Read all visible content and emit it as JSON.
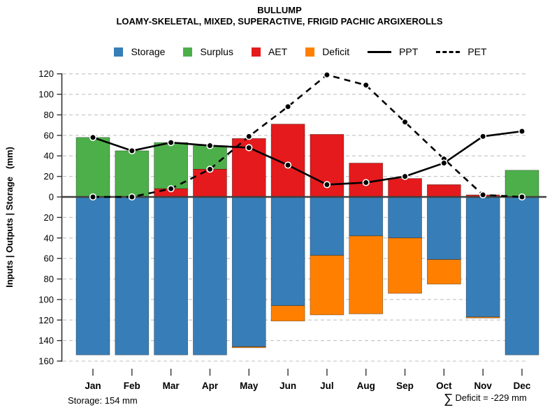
{
  "header": {
    "title": "BULLUMP",
    "subtitle": "LOAMY-SKELETAL, MIXED, SUPERACTIVE, FRIGID PACHIC ARGIXEROLLS"
  },
  "legend": {
    "items": [
      {
        "label": "Storage",
        "swatch": "square",
        "color": "#377EB8"
      },
      {
        "label": "Surplus",
        "swatch": "square",
        "color": "#4DAF4A"
      },
      {
        "label": "AET",
        "swatch": "square",
        "color": "#E41A1C"
      },
      {
        "label": "Deficit",
        "swatch": "square",
        "color": "#FF8000"
      },
      {
        "label": "PPT",
        "swatch": "solid-line",
        "color": "#000000"
      },
      {
        "label": "PET",
        "swatch": "dashed-line",
        "color": "#000000"
      }
    ]
  },
  "y_axis": {
    "label": "Inputs | Outputs | Storage   (mm)",
    "tick_labels": [
      "120",
      "100",
      "80",
      "60",
      "40",
      "20",
      "0",
      "20",
      "40",
      "60",
      "80",
      "100",
      "120",
      "140",
      "160"
    ]
  },
  "annotations": {
    "storage_note": "Storage: 154 mm",
    "sigma": "∑",
    "deficit_note": "Deficit = -229 mm"
  },
  "colors": {
    "storage": "#377EB8",
    "surplus": "#4DAF4A",
    "aet": "#E41A1C",
    "deficit": "#FF8000",
    "line": "#000000",
    "grid": "#C8C8C8",
    "axis": "#333333",
    "zero_line": "#404040",
    "marker_fill": "#000000",
    "marker_ring": "#FFFFFF"
  },
  "chart_data": {
    "type": "bar",
    "subtype": "water-balance: stacked bars above/below zero with line overlays",
    "title": "BULLUMP",
    "xlabel": "",
    "ylabel": "Inputs | Outputs | Storage   (mm)",
    "categories": [
      "Jan",
      "Feb",
      "Mar",
      "Apr",
      "May",
      "Jun",
      "Jul",
      "Aug",
      "Sep",
      "Oct",
      "Nov",
      "Dec"
    ],
    "series": [
      {
        "name": "Storage",
        "render": "bar-below-zero",
        "color": "#377EB8",
        "values": [
          154,
          154,
          154,
          154,
          146,
          106,
          57,
          38,
          40,
          61,
          117,
          154
        ]
      },
      {
        "name": "Surplus",
        "render": "bar-above-zero-stacked-on-AET",
        "color": "#4DAF4A",
        "values": [
          58,
          45,
          45,
          23,
          0,
          0,
          0,
          0,
          0,
          0,
          0,
          26
        ]
      },
      {
        "name": "AET",
        "render": "bar-above-zero",
        "color": "#E41A1C",
        "values": [
          0,
          0,
          8,
          27,
          57,
          71,
          61,
          33,
          18,
          12,
          2,
          0
        ]
      },
      {
        "name": "Deficit",
        "render": "bar-below-zero-stacked-under-Storage",
        "color": "#FF8000",
        "values": [
          0,
          0,
          0,
          0,
          1,
          15,
          58,
          76,
          54,
          24,
          1,
          0
        ]
      },
      {
        "name": "PPT",
        "render": "line-solid",
        "color": "#000000",
        "values": [
          58,
          45,
          53,
          50,
          48,
          31,
          12,
          14,
          20,
          33,
          59,
          64
        ]
      },
      {
        "name": "PET",
        "render": "line-dashed",
        "color": "#000000",
        "values": [
          0,
          0,
          8,
          27,
          59,
          88,
          119,
          109,
          73,
          37,
          2,
          0
        ]
      }
    ],
    "ylim_above_zero": [
      0,
      120
    ],
    "ylim_below_zero": [
      0,
      160
    ],
    "y_tick_step": 20,
    "grid": "dashed horizontal gridlines every 20 mm",
    "legend_position": "top center",
    "annotations": {
      "storage_total": "Storage: 154 mm",
      "deficit_total": "∑ Deficit = -229 mm"
    }
  }
}
